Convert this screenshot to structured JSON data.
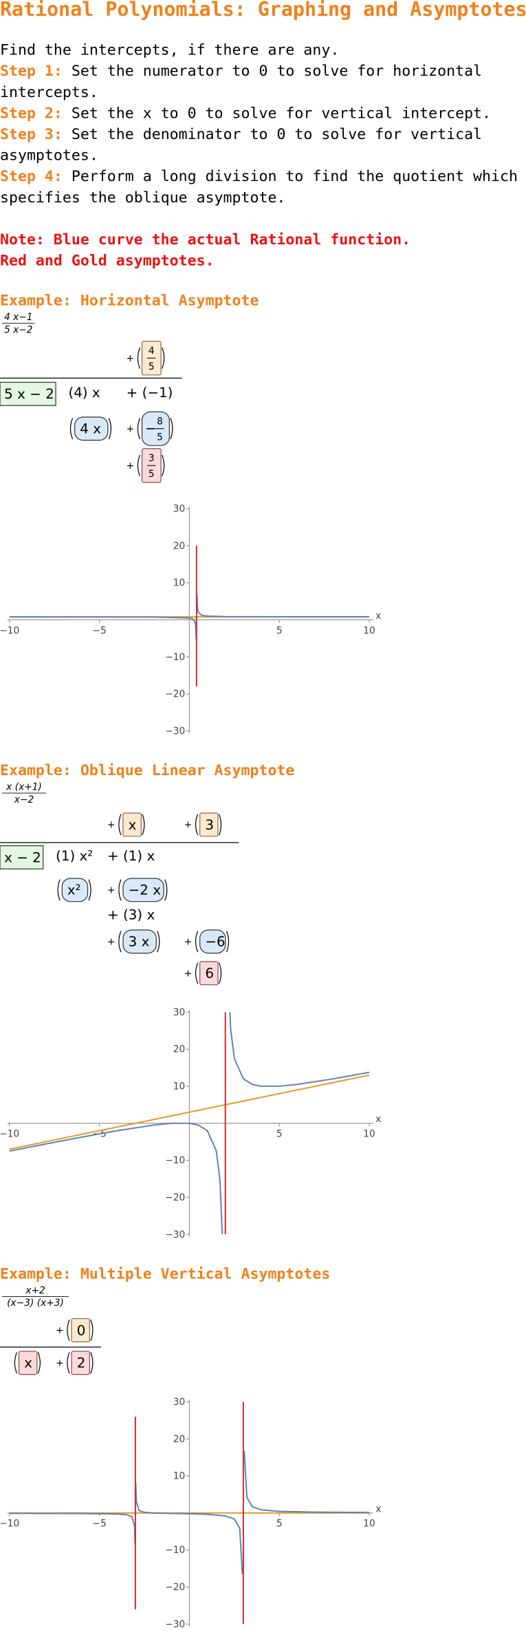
{
  "document": {
    "title": "Rational Polynomials: Graphing and Asymptotes",
    "intro": "Find the intercepts, if there are any.",
    "steps": [
      {
        "label": "Step 1:",
        "lines": [
          "Set the numerator to 0 to solve for horizontal",
          "intercepts."
        ]
      },
      {
        "label": "Step 2:",
        "lines": [
          "Set the x to 0 to solve for vertical intercept."
        ]
      },
      {
        "label": "Step 3:",
        "lines": [
          "Set the denominator to 0 to solve for vertical",
          "asymptotes."
        ]
      },
      {
        "label": "Step 4:",
        "lines": [
          "Perform a long division to find the quotient which",
          "specifies the oblique asymptote."
        ]
      }
    ],
    "notes": [
      "Note: Blue curve the actual Rational function.",
      "Red and Gold asymptotes."
    ],
    "examples": [
      {
        "heading": "Example: Horizontal Asymptote",
        "fraction": {
          "numerator": "4 x−1",
          "denominator": "5 x−2"
        },
        "division": {
          "divisor": "5 x − 2",
          "quotient": [
            null,
            {
              "lead": "+",
              "num": "4",
              "den": "5",
              "box": "orange"
            }
          ],
          "rows": [
            [
              {
                "text": "(4) x"
              },
              {
                "text": "+ (−1)"
              }
            ],
            [
              {
                "text": "4 x",
                "box": "blue"
              },
              {
                "lead": "+",
                "sign": "−",
                "num": "8",
                "den": "5",
                "box": "blue"
              }
            ],
            [
              null,
              {
                "lead": "+",
                "num": "3",
                "den": "5",
                "box": "pink"
              }
            ]
          ]
        }
      },
      {
        "heading": "Example: Oblique Linear Asymptote",
        "fraction": {
          "numerator": "x (x+1)",
          "denominator": "x−2"
        },
        "division": {
          "divisor": "x − 2",
          "quotient": [
            null,
            {
              "lead": "+",
              "text": "x",
              "box": "orange"
            },
            {
              "lead": "+",
              "text": "3",
              "box": "orange"
            }
          ],
          "rows": [
            [
              {
                "text": "(1) x²"
              },
              {
                "text": "+ (1) x"
              },
              null
            ],
            [
              {
                "text": "x²",
                "box": "blue"
              },
              {
                "lead": "+",
                "text": "−2 x",
                "box": "blue"
              },
              null
            ],
            [
              null,
              {
                "text": "+ (3) x"
              },
              null
            ],
            [
              null,
              {
                "lead": "+",
                "text": "3 x",
                "box": "blue"
              },
              {
                "lead": "+",
                "text": "−6",
                "box": "blue"
              }
            ],
            [
              null,
              null,
              {
                "lead": "+",
                "text": "6",
                "box": "pink"
              }
            ]
          ]
        }
      },
      {
        "heading": "Example: Multiple Vertical Asymptotes",
        "fraction": {
          "numerator": "x+2",
          "denominator": "(x−3) (x+3)"
        },
        "division": {
          "divisor": null,
          "quotient": [
            null,
            {
              "lead": "+",
              "text": "0",
              "box": "orange"
            }
          ],
          "rows": [
            [
              {
                "text": "x",
                "box": "pink"
              },
              {
                "lead": "+",
                "text": "2",
                "box": "pink"
              }
            ]
          ]
        }
      }
    ]
  },
  "chart_data": [
    {
      "type": "line",
      "x_label": "x",
      "xlim": [
        -10,
        10
      ],
      "ylim": [
        -30,
        30
      ],
      "xticks": [
        {
          "value": -10,
          "label": "−10"
        },
        {
          "value": -5,
          "label": "−5"
        },
        5,
        10
      ],
      "yticks": [
        {
          "value": -30,
          "label": "−30"
        },
        {
          "value": -20,
          "label": "−20"
        },
        {
          "value": -10,
          "label": "−10"
        },
        10,
        20,
        30
      ],
      "series": [
        {
          "color": "#e19c24",
          "x": [
            -10,
            10
          ],
          "values": [
            0.8,
            0.8
          ]
        },
        {
          "color": "#5e81b5",
          "x": [
            -10,
            -5,
            -2,
            0,
            0.2,
            0.3,
            0.35,
            0.38,
            0.4,
            0.42,
            0.45,
            0.5,
            0.7,
            1,
            2,
            5,
            10
          ],
          "values": [
            0.788,
            0.778,
            0.75,
            0.5,
            0.2,
            -0.4,
            -1.6,
            -5.2,
            null,
            6.8,
            3.2,
            2,
            1.2,
            1,
            0.875,
            0.826,
            0.8125
          ]
        },
        {
          "color": "#d62728",
          "x": [
            0.4,
            0.4
          ],
          "values": [
            20,
            -18
          ]
        }
      ]
    },
    {
      "type": "line",
      "x_label": "x",
      "xlim": [
        -10,
        10
      ],
      "ylim": [
        -30,
        30
      ],
      "xticks": [
        {
          "value": -10,
          "label": "−10"
        },
        {
          "value": -5,
          "label": "−5"
        },
        5,
        10
      ],
      "yticks": [
        {
          "value": -30,
          "label": "−30"
        },
        {
          "value": -20,
          "label": "−20"
        },
        {
          "value": -10,
          "label": "−10"
        },
        10,
        20,
        30
      ],
      "series": [
        {
          "color": "#e19c24",
          "x": [
            -10,
            10
          ],
          "values": [
            -7,
            13
          ]
        },
        {
          "color": "#5e81b5",
          "x": [
            -10,
            -8,
            -6,
            -4,
            -2,
            -1,
            0,
            0.5,
            1,
            1.5,
            1.7,
            1.828,
            2,
            2.2,
            2.3,
            2.5,
            3,
            3.5,
            4,
            5,
            6,
            8,
            10
          ],
          "values": [
            -7.5,
            -5.6,
            -3.75,
            -2,
            -0.5,
            0,
            0,
            -0.5,
            -2,
            -7.5,
            -15.3,
            -30.06,
            null,
            35.2,
            25.3,
            17.5,
            12,
            10.5,
            10,
            10,
            10.5,
            12,
            13.75
          ]
        },
        {
          "color": "#d62728",
          "x": [
            2,
            2
          ],
          "values": [
            30,
            -30
          ]
        }
      ]
    },
    {
      "type": "line",
      "x_label": "x",
      "xlim": [
        -10,
        10
      ],
      "ylim": [
        -30,
        30
      ],
      "xticks": [
        {
          "value": -10,
          "label": "−10"
        },
        {
          "value": -5,
          "label": "−5"
        },
        5,
        10
      ],
      "yticks": [
        {
          "value": -30,
          "label": "−30"
        },
        {
          "value": -20,
          "label": "−20"
        },
        {
          "value": -10,
          "label": "−10"
        },
        10,
        20,
        30
      ],
      "series": [
        {
          "color": "#e19c24",
          "x": [
            -10,
            10
          ],
          "values": [
            0,
            0
          ]
        },
        {
          "color": "#5e81b5",
          "x": [
            -10,
            -6,
            -4,
            -3.5,
            -3.2,
            -3.05,
            -3.02,
            -3,
            -2.98,
            -2.95,
            -2.8,
            -2.5,
            -2,
            0,
            1,
            2,
            2.5,
            2.8,
            2.95,
            3,
            3.05,
            3.2,
            3.5,
            4,
            5,
            7,
            10
          ],
          "values": [
            -0.088,
            -0.148,
            -0.286,
            -0.46,
            -0.97,
            -3.47,
            -8.47,
            null,
            8.19,
            3.19,
            0.69,
            0.18,
            0,
            -0.222,
            -0.375,
            -0.8,
            -1.64,
            -4.14,
            -16.6,
            null,
            16.7,
            4.19,
            1.69,
            0.857,
            0.4375,
            0.225,
            0.132
          ]
        },
        {
          "color": "#d62728",
          "x": [
            -3,
            -3
          ],
          "values": [
            26,
            -26
          ]
        },
        {
          "color": "#d62728",
          "x": [
            3,
            3
          ],
          "values": [
            30,
            -30
          ]
        }
      ]
    }
  ]
}
